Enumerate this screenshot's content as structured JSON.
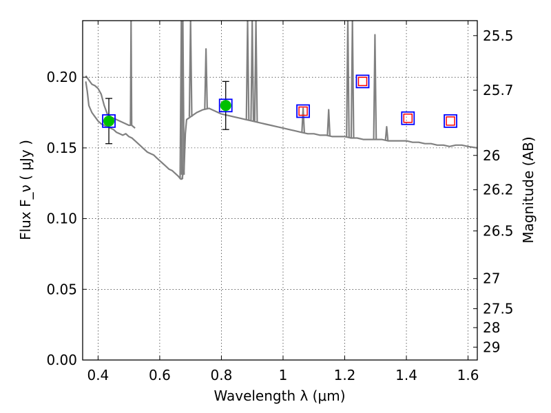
{
  "chart_data": {
    "type": "line",
    "xlabel": "Wavelength  λ (μm)",
    "ylabel": "Flux  F_ν  ( μJy )",
    "ylabel_right": "Magnitude (AB)",
    "xlim": [
      0.35,
      1.63
    ],
    "ylim": [
      0.0,
      0.24
    ],
    "grid": true,
    "x_ticks": [
      0.4,
      0.6,
      0.8,
      1.0,
      1.2,
      1.4,
      1.6
    ],
    "x_tick_labels": [
      "0.4",
      "0.6",
      "0.8",
      "1",
      "1.2",
      "1.4",
      "1.6"
    ],
    "y_ticks": [
      0.0,
      0.05,
      0.1,
      0.15,
      0.2
    ],
    "y_tick_labels": [
      "0.00",
      "0.05",
      "0.10",
      "0.15",
      "0.20"
    ],
    "right_ticks": [
      {
        "label": "25.5",
        "flux": 0.2294
      },
      {
        "label": "25.7",
        "flux": 0.1908
      },
      {
        "label": "26",
        "flux": 0.1447
      },
      {
        "label": "26.2",
        "flux": 0.1204
      },
      {
        "label": "26.5",
        "flux": 0.0913
      },
      {
        "label": "27",
        "flux": 0.0576
      },
      {
        "label": "27.5",
        "flux": 0.0363
      },
      {
        "label": "28",
        "flux": 0.0229
      },
      {
        "label": "29",
        "flux": 0.0091
      }
    ],
    "colors": {
      "spectrum": "#808080",
      "observed_fill": "#00c000",
      "box_edge": "#0000ff",
      "model_edge": "#ff0000",
      "errorbar": "#000000"
    },
    "spectrum": [
      [
        0.36,
        0.197
      ],
      [
        0.365,
        0.19
      ],
      [
        0.37,
        0.18
      ],
      [
        0.38,
        0.175
      ],
      [
        0.39,
        0.172
      ],
      [
        0.4,
        0.169
      ],
      [
        0.41,
        0.167
      ],
      [
        0.42,
        0.166
      ],
      [
        0.43,
        0.165
      ],
      [
        0.44,
        0.164
      ],
      [
        0.45,
        0.163
      ],
      [
        0.46,
        0.161
      ],
      [
        0.47,
        0.16
      ],
      [
        0.48,
        0.159
      ],
      [
        0.49,
        0.16
      ],
      [
        0.5,
        0.158
      ],
      [
        0.51,
        0.157
      ],
      [
        0.52,
        0.155
      ],
      [
        0.53,
        0.153
      ],
      [
        0.54,
        0.151
      ],
      [
        0.55,
        0.149
      ],
      [
        0.56,
        0.147
      ],
      [
        0.57,
        0.146
      ],
      [
        0.58,
        0.145
      ],
      [
        0.59,
        0.143
      ],
      [
        0.6,
        0.141
      ],
      [
        0.61,
        0.139
      ],
      [
        0.62,
        0.137
      ],
      [
        0.63,
        0.135
      ],
      [
        0.64,
        0.134
      ],
      [
        0.65,
        0.132
      ],
      [
        0.66,
        0.13
      ],
      [
        0.668,
        0.128
      ],
      [
        0.672,
        0.128
      ],
      [
        0.675,
        0.131
      ],
      [
        0.679,
        0.135
      ],
      [
        0.683,
        0.16
      ],
      [
        0.687,
        0.17
      ],
      [
        0.7,
        0.172
      ],
      [
        0.72,
        0.175
      ],
      [
        0.74,
        0.177
      ],
      [
        0.76,
        0.178
      ],
      [
        0.78,
        0.176
      ],
      [
        0.8,
        0.174
      ],
      [
        0.82,
        0.173
      ],
      [
        0.84,
        0.172
      ],
      [
        0.86,
        0.171
      ],
      [
        0.88,
        0.17
      ],
      [
        0.9,
        0.169
      ],
      [
        0.92,
        0.168
      ],
      [
        0.94,
        0.167
      ],
      [
        0.96,
        0.166
      ],
      [
        0.98,
        0.165
      ],
      [
        1.0,
        0.164
      ],
      [
        1.02,
        0.163
      ],
      [
        1.04,
        0.162
      ],
      [
        1.06,
        0.161
      ],
      [
        1.08,
        0.16
      ],
      [
        1.1,
        0.16
      ],
      [
        1.12,
        0.159
      ],
      [
        1.14,
        0.159
      ],
      [
        1.16,
        0.158
      ],
      [
        1.18,
        0.158
      ],
      [
        1.2,
        0.158
      ],
      [
        1.22,
        0.157
      ],
      [
        1.24,
        0.157
      ],
      [
        1.26,
        0.156
      ],
      [
        1.28,
        0.156
      ],
      [
        1.3,
        0.156
      ],
      [
        1.32,
        0.156
      ],
      [
        1.34,
        0.155
      ],
      [
        1.36,
        0.155
      ],
      [
        1.38,
        0.155
      ],
      [
        1.4,
        0.155
      ],
      [
        1.42,
        0.154
      ],
      [
        1.44,
        0.154
      ],
      [
        1.46,
        0.153
      ],
      [
        1.48,
        0.153
      ],
      [
        1.5,
        0.152
      ],
      [
        1.52,
        0.152
      ],
      [
        1.54,
        0.151
      ],
      [
        1.56,
        0.152
      ],
      [
        1.58,
        0.152
      ],
      [
        1.6,
        0.151
      ],
      [
        1.63,
        0.15
      ]
    ],
    "upper_spectrum": [
      [
        0.36,
        0.201
      ],
      [
        0.37,
        0.198
      ],
      [
        0.38,
        0.195
      ],
      [
        0.39,
        0.194
      ],
      [
        0.4,
        0.192
      ],
      [
        0.41,
        0.188
      ],
      [
        0.42,
        0.18
      ],
      [
        0.43,
        0.174
      ],
      [
        0.44,
        0.172
      ],
      [
        0.45,
        0.171
      ],
      [
        0.46,
        0.17
      ],
      [
        0.48,
        0.168
      ],
      [
        0.5,
        0.166
      ],
      [
        0.505,
        0.166
      ],
      [
        0.507,
        0.24
      ],
      [
        0.509,
        0.166
      ],
      [
        0.52,
        0.164
      ]
    ],
    "photometry": [
      {
        "x": 0.435,
        "flux": 0.169,
        "model": 0.169,
        "err": 0.016,
        "observed": true
      },
      {
        "x": 0.814,
        "flux": 0.18,
        "model": 0.18,
        "err": 0.017,
        "observed": true
      },
      {
        "x": 1.065,
        "flux": 0.176,
        "model": 0.176,
        "err": null,
        "observed": false
      },
      {
        "x": 1.258,
        "flux": 0.197,
        "model": 0.197,
        "err": null,
        "observed": false
      },
      {
        "x": 1.405,
        "flux": 0.171,
        "model": 0.171,
        "err": null,
        "observed": false
      },
      {
        "x": 1.543,
        "flux": 0.169,
        "model": 0.169,
        "err": null,
        "observed": false
      }
    ]
  }
}
